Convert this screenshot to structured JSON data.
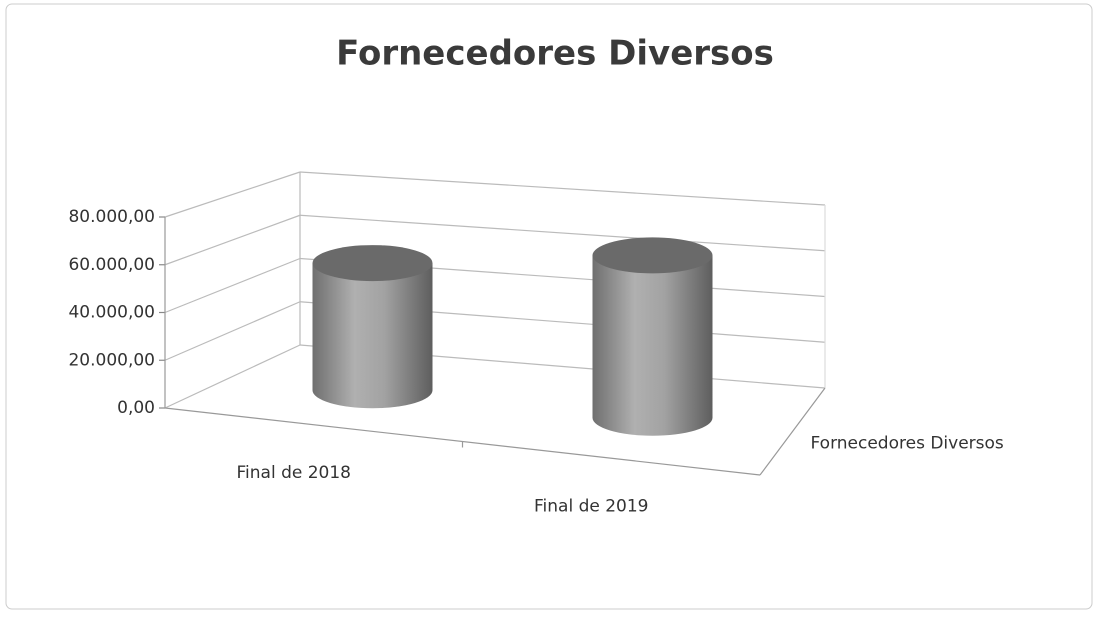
{
  "chart_data": {
    "type": "bar3d_cylinder",
    "title": "Fornecedores Diversos",
    "categories": [
      "Final de 2018",
      "Final de 2019"
    ],
    "series": [
      {
        "name": "Fornecedores Diversos",
        "color": "#9a9a9a",
        "values": [
          55000,
          68000
        ]
      }
    ],
    "ylim": [
      0,
      80000
    ],
    "yticks": [
      {
        "value": 0,
        "label": "0,00"
      },
      {
        "value": 20000,
        "label": "20.000,00"
      },
      {
        "value": 40000,
        "label": "40.000,00"
      },
      {
        "value": 60000,
        "label": "60.000,00"
      },
      {
        "value": 80000,
        "label": "80.000,00"
      }
    ],
    "grid": true
  }
}
